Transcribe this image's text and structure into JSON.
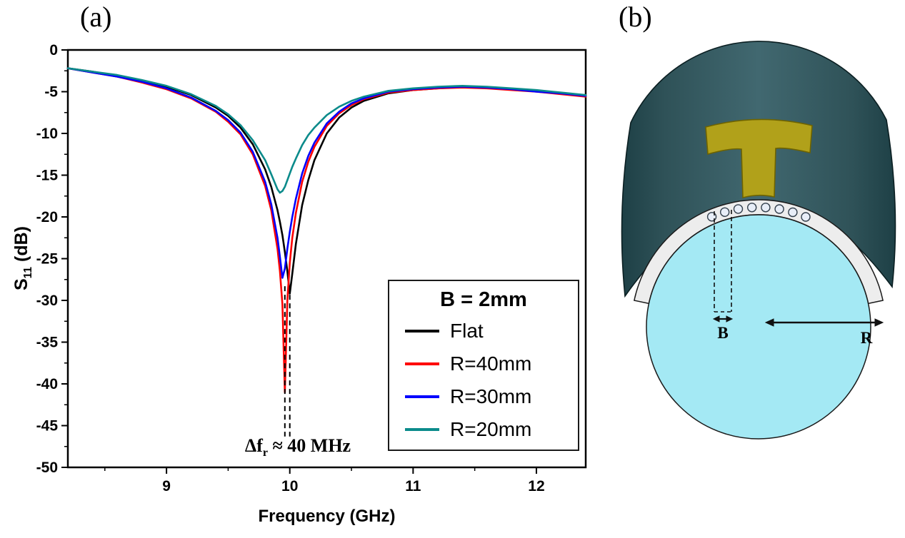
{
  "panels": {
    "a_label": "(a)",
    "b_label": "(b)"
  },
  "chart_data": {
    "type": "line",
    "xlabel": "Frequency (GHz)",
    "ylabel": "S11 (dB)",
    "ylabel_parts": {
      "base": "S",
      "sub": "11",
      "rest": " (dB)"
    },
    "xlim": [
      8.2,
      12.4
    ],
    "ylim": [
      -50,
      0
    ],
    "x_major_ticks": [
      9,
      10,
      11,
      12
    ],
    "x_minor_ticks": [
      8.5,
      9.5,
      10.5,
      11.5
    ],
    "y_major_ticks": [
      0,
      -5,
      -10,
      -15,
      -20,
      -25,
      -30,
      -35,
      -40,
      -45,
      -50
    ],
    "y_minor_ticks": [
      -2.5,
      -7.5,
      -12.5,
      -17.5,
      -22.5,
      -27.5,
      -32.5,
      -37.5,
      -42.5,
      -47.5
    ],
    "grid": false,
    "x": [
      8.2,
      8.4,
      8.6,
      8.8,
      9.0,
      9.2,
      9.4,
      9.5,
      9.6,
      9.7,
      9.8,
      9.85,
      9.9,
      9.92,
      9.94,
      9.96,
      9.98,
      10.0,
      10.02,
      10.05,
      10.1,
      10.15,
      10.2,
      10.3,
      10.4,
      10.5,
      10.6,
      10.8,
      11.0,
      11.2,
      11.4,
      11.6,
      11.8,
      12.0,
      12.2,
      12.4
    ],
    "series": [
      {
        "name": "Flat",
        "color": "#000000",
        "values": [
          -2.2,
          -2.6,
          -3.1,
          -3.7,
          -4.4,
          -5.4,
          -6.9,
          -7.9,
          -9.3,
          -11.3,
          -14.3,
          -16.4,
          -19.2,
          -20.6,
          -22.2,
          -24.2,
          -26.5,
          -29.2,
          -26.8,
          -23.2,
          -18.6,
          -15.6,
          -13.2,
          -10.0,
          -8.1,
          -6.9,
          -6.1,
          -5.2,
          -4.8,
          -4.6,
          -4.4,
          -4.5,
          -4.7,
          -4.9,
          -5.2,
          -5.5
        ]
      },
      {
        "name": "R=40mm",
        "color": "#fe0000",
        "values": [
          -2.2,
          -2.7,
          -3.2,
          -3.9,
          -4.7,
          -5.8,
          -7.4,
          -8.6,
          -10.1,
          -12.5,
          -16.3,
          -19.2,
          -23.8,
          -26.5,
          -30.5,
          -41.0,
          -30.0,
          -25.5,
          -22.5,
          -19.5,
          -15.8,
          -13.4,
          -11.6,
          -9.1,
          -7.6,
          -6.6,
          -5.9,
          -5.1,
          -4.8,
          -4.6,
          -4.5,
          -4.6,
          -4.8,
          -5.0,
          -5.3,
          -5.6
        ]
      },
      {
        "name": "R=30mm",
        "color": "#0000fe",
        "values": [
          -2.2,
          -2.7,
          -3.2,
          -3.8,
          -4.6,
          -5.7,
          -7.3,
          -8.4,
          -9.9,
          -12.2,
          -15.8,
          -18.5,
          -22.5,
          -24.8,
          -27.3,
          -26.2,
          -23.8,
          -21.8,
          -20.0,
          -17.8,
          -14.8,
          -12.7,
          -11.1,
          -8.8,
          -7.4,
          -6.4,
          -5.8,
          -5.0,
          -4.7,
          -4.5,
          -4.4,
          -4.5,
          -4.7,
          -5.0,
          -5.2,
          -5.5
        ]
      },
      {
        "name": "R=20mm",
        "color": "#0b8b8b",
        "values": [
          -2.2,
          -2.6,
          -3.0,
          -3.6,
          -4.3,
          -5.3,
          -6.7,
          -7.7,
          -9.0,
          -10.8,
          -13.2,
          -14.9,
          -16.7,
          -17.1,
          -16.9,
          -16.4,
          -15.6,
          -14.8,
          -14.0,
          -13.0,
          -11.4,
          -10.2,
          -9.3,
          -7.8,
          -6.8,
          -6.1,
          -5.6,
          -4.9,
          -4.6,
          -4.4,
          -4.3,
          -4.4,
          -4.6,
          -4.8,
          -5.1,
          -5.4
        ]
      }
    ],
    "legend": {
      "title": "B = 2mm",
      "position": "lower-right"
    },
    "annotation": {
      "prefix": "Δf",
      "sub": "r",
      "rest": " ≈ 40 MHz",
      "f1": 9.96,
      "f2": 10.0
    }
  },
  "diagram": {
    "b_label": "B",
    "r_label": "R",
    "colors": {
      "cylinder": "#a4e9f4",
      "substrate_band": "#ededed",
      "conformal_sheet": "#3a5f65",
      "patch": "#b1a11a",
      "via": "#e8eef8"
    }
  }
}
